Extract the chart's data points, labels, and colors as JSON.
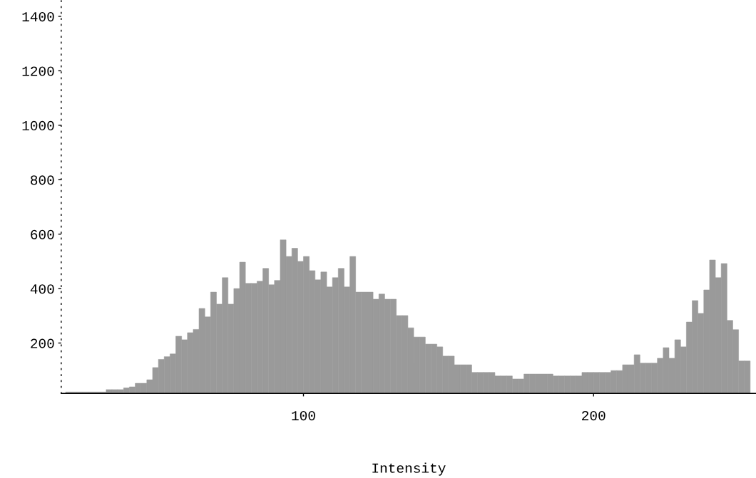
{
  "chart_data": {
    "type": "histogram",
    "xlabel": "Intensity",
    "bins": [
      18,
      20,
      22,
      24,
      26,
      28,
      30,
      32,
      34,
      36,
      38,
      40,
      42,
      44,
      46,
      48,
      50,
      52,
      54,
      56,
      58,
      60,
      62,
      64,
      66,
      68,
      70,
      72,
      74,
      76,
      78,
      80,
      82,
      84,
      86,
      88,
      90,
      92,
      94,
      96,
      98,
      100,
      102,
      104,
      106,
      108,
      110,
      112,
      114,
      116,
      118,
      120,
      122,
      124,
      126,
      128,
      130,
      132,
      134,
      136,
      138,
      140,
      142,
      144,
      146,
      148,
      150,
      152,
      154,
      156,
      158,
      160,
      162,
      164,
      166,
      168,
      170,
      172,
      174,
      176,
      178,
      180,
      182,
      184,
      186,
      188,
      190,
      192,
      194,
      196,
      198,
      200,
      202,
      204,
      206,
      208,
      210,
      212,
      214,
      216,
      218,
      220,
      222,
      224,
      226,
      228,
      230,
      232,
      234,
      236,
      238,
      240,
      242,
      244,
      246,
      248,
      250,
      252,
      254
    ],
    "values": [
      20,
      20,
      20,
      20,
      20,
      20,
      20,
      29,
      29,
      29,
      35,
      39,
      52,
      52,
      65,
      110,
      140,
      150,
      160,
      225,
      212,
      238,
      250,
      327,
      296,
      387,
      343,
      440,
      343,
      400,
      497,
      419,
      419,
      427,
      474,
      414,
      430,
      579,
      518,
      548,
      500,
      518,
      466,
      432,
      461,
      406,
      440,
      474,
      406,
      518,
      387,
      387,
      387,
      361,
      380,
      361,
      361,
      301,
      301,
      256,
      222,
      222,
      196,
      196,
      186,
      152,
      152,
      120,
      120,
      120,
      92,
      92,
      92,
      92,
      79,
      79,
      79,
      68,
      68,
      86,
      86,
      86,
      86,
      86,
      79,
      79,
      79,
      79,
      79,
      92,
      92,
      92,
      92,
      92,
      99,
      99,
      120,
      120,
      157,
      126,
      126,
      126,
      144,
      183,
      144,
      212,
      186,
      277,
      356,
      309,
      395,
      505,
      440,
      492,
      283,
      249,
      134,
      134
    ],
    "color": "#9a9a9a",
    "xlim": [
      16.5,
      256
    ],
    "ylim": [
      15,
      1460
    ],
    "xticks": [
      100,
      200
    ],
    "yticks": [
      200,
      400,
      600,
      800,
      1000,
      1200,
      1400
    ],
    "grid": false
  }
}
